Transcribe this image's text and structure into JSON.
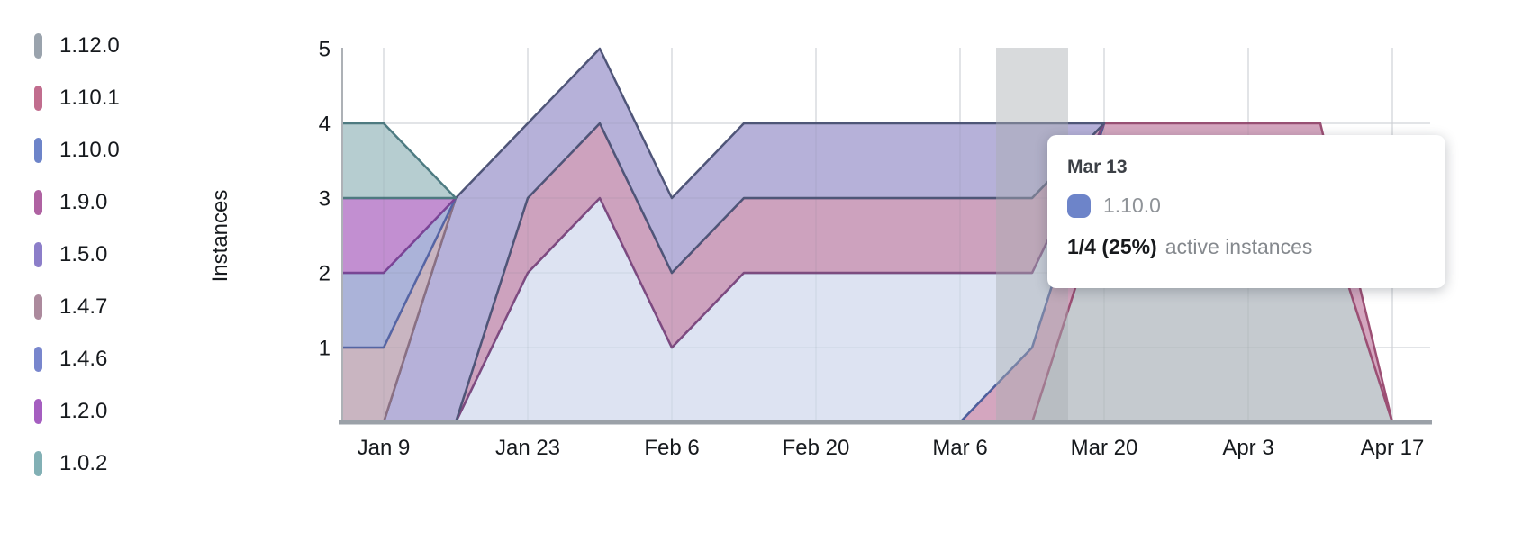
{
  "y_axis": {
    "label": "Instances",
    "ticks": [
      "5",
      "4",
      "3",
      "2",
      "1"
    ]
  },
  "x_axis": {
    "ticks": [
      "Jan 9",
      "Jan 23",
      "Feb 6",
      "Feb 20",
      "Mar 6",
      "Mar 20",
      "Apr 3",
      "Apr 17"
    ]
  },
  "tooltip": {
    "date": "Mar 13",
    "series": "1.10.0",
    "swatch_color": "#6d84c9",
    "value": "1/4 (25%)",
    "caption": "active instances"
  },
  "highlight": {
    "x_label": "Mar 13"
  },
  "chart_data": {
    "type": "area",
    "stacked": true,
    "stack_order": "first series at bottom of stack",
    "title": "",
    "xlabel": "",
    "ylabel": "Instances",
    "ylim": [
      0,
      5
    ],
    "grid": true,
    "legend_position": "left",
    "x": [
      "Jan 2",
      "Jan 9",
      "Jan 16",
      "Jan 23",
      "Jan 30",
      "Feb 6",
      "Feb 13",
      "Feb 20",
      "Feb 27",
      "Mar 6",
      "Mar 13",
      "Mar 20",
      "Mar 27",
      "Apr 3",
      "Apr 10",
      "Apr 17"
    ],
    "series": [
      {
        "name": "1.12.0",
        "swatch": "#9aa3ad",
        "stroke": "#7d8694",
        "fill": "#c5cacf",
        "values": [
          0,
          0,
          0,
          0,
          0,
          0,
          0,
          0,
          0,
          0,
          0,
          3,
          3,
          3,
          3,
          0
        ]
      },
      {
        "name": "1.10.1",
        "swatch": "#c16d8e",
        "stroke": "#9c4f74",
        "fill": "#d4a6bf",
        "values": [
          0,
          0,
          0,
          0,
          0,
          0,
          0,
          0,
          0,
          0,
          1,
          1,
          1,
          1,
          1,
          0
        ]
      },
      {
        "name": "1.10.0",
        "swatch": "#6d84c9",
        "stroke": "#4d5f9d",
        "fill": "#dde3f2",
        "values": [
          0,
          0,
          0,
          2,
          3,
          1,
          2,
          2,
          2,
          2,
          1,
          0,
          0,
          0,
          0,
          0
        ]
      },
      {
        "name": "1.9.0",
        "swatch": "#af62a2",
        "stroke": "#7e4a80",
        "fill": "#cda2be",
        "values": [
          0,
          0,
          0,
          1,
          1,
          1,
          1,
          1,
          1,
          1,
          1,
          0,
          0,
          0,
          0,
          0
        ]
      },
      {
        "name": "1.5.0",
        "swatch": "#8c7ec9",
        "stroke": "#4f5578",
        "fill": "#b6b1d9",
        "values": [
          0,
          0,
          3,
          1,
          1,
          1,
          1,
          1,
          1,
          1,
          1,
          0,
          0,
          0,
          0,
          0
        ]
      },
      {
        "name": "1.4.7",
        "swatch": "#ac8a9d",
        "stroke": "#8a7083",
        "fill": "#c9b5c1",
        "values": [
          1,
          1,
          0,
          0,
          0,
          0,
          0,
          0,
          0,
          0,
          0,
          0,
          0,
          0,
          0,
          0
        ]
      },
      {
        "name": "1.4.6",
        "swatch": "#7886cd",
        "stroke": "#5565a5",
        "fill": "#abb3d9",
        "values": [
          1,
          1,
          0,
          0,
          0,
          0,
          0,
          0,
          0,
          0,
          0,
          0,
          0,
          0,
          0,
          0
        ]
      },
      {
        "name": "1.2.0",
        "swatch": "#a55ec0",
        "stroke": "#7b4496",
        "fill": "#c28fd1",
        "values": [
          1,
          1,
          0,
          0,
          0,
          0,
          0,
          0,
          0,
          0,
          0,
          0,
          0,
          0,
          0,
          0
        ]
      },
      {
        "name": "1.0.2",
        "swatch": "#82b0b5",
        "stroke": "#4e7b82",
        "fill": "#b6cdd0",
        "values": [
          1,
          1,
          0,
          0,
          0,
          0,
          0,
          0,
          0,
          0,
          0,
          0,
          0,
          0,
          0,
          0
        ]
      }
    ]
  }
}
